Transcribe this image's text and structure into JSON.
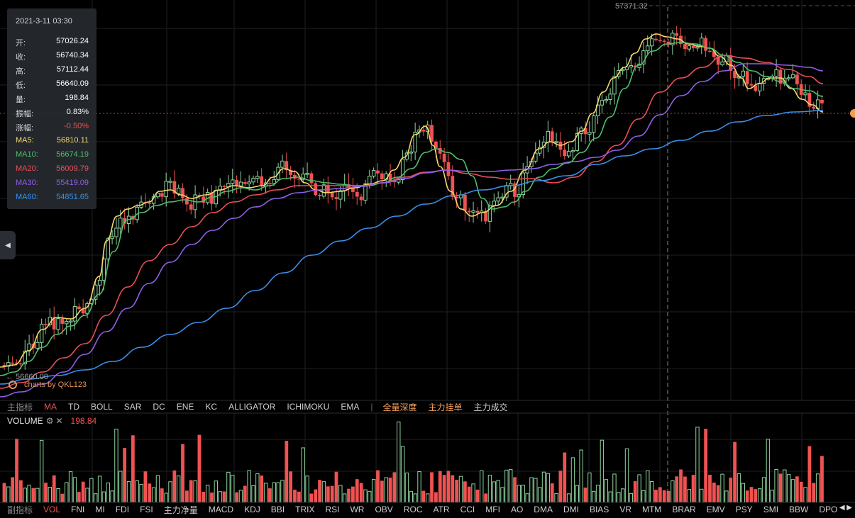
{
  "info": {
    "datetime": "2021-3-11 03:30",
    "rows": [
      {
        "label": "开:",
        "value": "57026.24",
        "color": "#ffffff"
      },
      {
        "label": "收:",
        "value": "56740.34",
        "color": "#ffffff"
      },
      {
        "label": "高:",
        "value": "57112.44",
        "color": "#ffffff"
      },
      {
        "label": "低:",
        "value": "56640.09",
        "color": "#ffffff"
      },
      {
        "label": "量:",
        "value": "198.84",
        "color": "#ffffff"
      },
      {
        "label": "振幅:",
        "value": "0.83%",
        "color": "#ffffff"
      },
      {
        "label": "涨幅:",
        "value": "-0.50%",
        "color": "#f05252"
      },
      {
        "label": "MA5:",
        "value": "56810.11",
        "color": "#f5d76e"
      },
      {
        "label": "MA10:",
        "value": "56674.19",
        "color": "#4fbf6b"
      },
      {
        "label": "MA20:",
        "value": "56009.79",
        "color": "#e8505b"
      },
      {
        "label": "MA30:",
        "value": "55419.09",
        "color": "#8f5fe8"
      },
      {
        "label": "MA60:",
        "value": "54851.65",
        "color": "#3b8fe8"
      }
    ]
  },
  "price_max_label": "57371.32",
  "price_min_label": "← 56660.00",
  "brand": "charts by QKL123",
  "main_indicators": {
    "title": "主指标",
    "items": [
      "MA",
      "TD",
      "BOLL",
      "SAR",
      "DC",
      "ENE",
      "KC",
      "ALLIGATOR",
      "ICHIMOKU",
      "EMA"
    ],
    "active": "MA",
    "separator": "|",
    "extra": [
      "全量深度",
      "主力挂单",
      "主力成交"
    ]
  },
  "volume_header": {
    "title": "VOLUME",
    "settings_icon": "gear-icon",
    "close_icon": "close-icon",
    "value": "198.84"
  },
  "sub_indicators": {
    "title": "副指标",
    "items": [
      "VOL",
      "FNI",
      "MI",
      "FDI",
      "FSI",
      "主力净量",
      "MACD",
      "KDJ",
      "BBI",
      "TRIX",
      "RSI",
      "WR",
      "OBV",
      "ROC",
      "ATR",
      "CCI",
      "MFI",
      "AO",
      "DMA",
      "DMI",
      "BIAS",
      "VR",
      "MTM",
      "BRAR",
      "EMV",
      "PSY",
      "SMI",
      "BBW",
      "DPO"
    ],
    "active": "VOL"
  },
  "colors": {
    "up": "#f05252",
    "down": "#8fd6a0",
    "ma5": "#f5d76e",
    "ma10": "#4fbf6b",
    "ma20": "#e8505b",
    "ma30": "#8f5fe8",
    "ma60": "#3b8fe8",
    "grid": "#1e2024"
  },
  "chart_data": {
    "type": "candlestick",
    "series": [
      {
        "name": "MA5",
        "points": [
          [
            0,
            518
          ],
          [
            20,
            515
          ],
          [
            40,
            495
          ],
          [
            60,
            465
          ],
          [
            80,
            448
          ],
          [
            100,
            450
          ],
          [
            120,
            435
          ],
          [
            140,
            390
          ],
          [
            150,
            340
          ],
          [
            165,
            305
          ],
          [
            180,
            295
          ],
          [
            195,
            290
          ],
          [
            210,
            285
          ],
          [
            225,
            270
          ],
          [
            240,
            268
          ],
          [
            255,
            275
          ],
          [
            270,
            280
          ],
          [
            290,
            275
          ],
          [
            310,
            268
          ],
          [
            330,
            262
          ],
          [
            350,
            265
          ],
          [
            370,
            262
          ],
          [
            385,
            250
          ],
          [
            400,
            238
          ],
          [
            415,
            242
          ],
          [
            430,
            258
          ],
          [
            445,
            268
          ],
          [
            460,
            272
          ],
          [
            480,
            270
          ],
          [
            500,
            265
          ],
          [
            520,
            260
          ],
          [
            540,
            255
          ],
          [
            555,
            240
          ],
          [
            570,
            222
          ],
          [
            585,
            190
          ],
          [
            600,
            178
          ],
          [
            610,
            205
          ],
          [
            620,
            235
          ],
          [
            635,
            270
          ],
          [
            650,
            295
          ],
          [
            665,
            305
          ],
          [
            680,
            300
          ],
          [
            700,
            290
          ],
          [
            720,
            270
          ],
          [
            740,
            240
          ],
          [
            760,
            210
          ],
          [
            775,
            200
          ],
          [
            790,
            205
          ],
          [
            805,
            200
          ],
          [
            820,
            185
          ],
          [
            835,
            160
          ],
          [
            850,
            130
          ],
          [
            865,
            110
          ],
          [
            880,
            95
          ],
          [
            895,
            75
          ],
          [
            910,
            55
          ],
          [
            925,
            48
          ],
          [
            940,
            52
          ],
          [
            955,
            55
          ],
          [
            970,
            62
          ],
          [
            985,
            65
          ],
          [
            1000,
            68
          ],
          [
            1015,
            80
          ],
          [
            1030,
            92
          ],
          [
            1045,
            110
          ],
          [
            1055,
            125
          ],
          [
            1070,
            118
          ],
          [
            1085,
            110
          ],
          [
            1100,
            110
          ],
          [
            1115,
            125
          ],
          [
            1130,
            140
          ],
          [
            1145,
            148
          ],
          [
            1160,
            158
          ]
        ]
      },
      {
        "name": "MA10",
        "points": [
          [
            0,
            530
          ],
          [
            20,
            525
          ],
          [
            40,
            510
          ],
          [
            60,
            490
          ],
          [
            80,
            472
          ],
          [
            100,
            460
          ],
          [
            120,
            445
          ],
          [
            140,
            415
          ],
          [
            160,
            355
          ],
          [
            180,
            310
          ],
          [
            200,
            300
          ],
          [
            220,
            290
          ],
          [
            240,
            285
          ],
          [
            260,
            282
          ],
          [
            280,
            285
          ],
          [
            300,
            278
          ],
          [
            320,
            270
          ],
          [
            340,
            265
          ],
          [
            360,
            268
          ],
          [
            380,
            262
          ],
          [
            400,
            252
          ],
          [
            420,
            250
          ],
          [
            440,
            255
          ],
          [
            460,
            258
          ],
          [
            480,
            260
          ],
          [
            500,
            262
          ],
          [
            520,
            262
          ],
          [
            540,
            258
          ],
          [
            560,
            250
          ],
          [
            580,
            238
          ],
          [
            600,
            215
          ],
          [
            615,
            210
          ],
          [
            630,
            215
          ],
          [
            650,
            225
          ],
          [
            665,
            248
          ],
          [
            680,
            280
          ],
          [
            695,
            295
          ],
          [
            710,
            292
          ],
          [
            725,
            285
          ],
          [
            740,
            270
          ],
          [
            760,
            250
          ],
          [
            780,
            238
          ],
          [
            800,
            230
          ],
          [
            820,
            215
          ],
          [
            840,
            195
          ],
          [
            860,
            165
          ],
          [
            880,
            125
          ],
          [
            900,
            92
          ],
          [
            920,
            72
          ],
          [
            940,
            62
          ],
          [
            960,
            60
          ],
          [
            980,
            62
          ],
          [
            1000,
            68
          ],
          [
            1020,
            78
          ],
          [
            1040,
            88
          ],
          [
            1060,
            100
          ],
          [
            1080,
            108
          ],
          [
            1100,
            115
          ],
          [
            1120,
            125
          ],
          [
            1140,
            128
          ],
          [
            1160,
            136
          ]
        ]
      },
      {
        "name": "MA20",
        "points": [
          [
            0,
            548
          ],
          [
            30,
            540
          ],
          [
            60,
            525
          ],
          [
            90,
            505
          ],
          [
            120,
            485
          ],
          [
            150,
            445
          ],
          [
            180,
            405
          ],
          [
            210,
            368
          ],
          [
            240,
            345
          ],
          [
            270,
            320
          ],
          [
            300,
            300
          ],
          [
            330,
            285
          ],
          [
            360,
            275
          ],
          [
            390,
            268
          ],
          [
            420,
            262
          ],
          [
            450,
            262
          ],
          [
            480,
            262
          ],
          [
            510,
            262
          ],
          [
            540,
            258
          ],
          [
            570,
            250
          ],
          [
            600,
            243
          ],
          [
            630,
            240
          ],
          [
            660,
            245
          ],
          [
            690,
            250
          ],
          [
            720,
            253
          ],
          [
            750,
            252
          ],
          [
            780,
            258
          ],
          [
            810,
            250
          ],
          [
            840,
            228
          ],
          [
            870,
            205
          ],
          [
            900,
            168
          ],
          [
            930,
            130
          ],
          [
            960,
            110
          ],
          [
            990,
            95
          ],
          [
            1020,
            78
          ],
          [
            1050,
            82
          ],
          [
            1080,
            88
          ],
          [
            1110,
            98
          ],
          [
            1140,
            108
          ],
          [
            1160,
            118
          ]
        ]
      },
      {
        "name": "MA30",
        "points": [
          [
            0,
            560
          ],
          [
            30,
            553
          ],
          [
            60,
            542
          ],
          [
            90,
            525
          ],
          [
            120,
            500
          ],
          [
            150,
            468
          ],
          [
            180,
            435
          ],
          [
            210,
            400
          ],
          [
            240,
            370
          ],
          [
            270,
            345
          ],
          [
            300,
            325
          ],
          [
            330,
            308
          ],
          [
            360,
            292
          ],
          [
            390,
            280
          ],
          [
            420,
            272
          ],
          [
            450,
            268
          ],
          [
            480,
            266
          ],
          [
            510,
            263
          ],
          [
            540,
            258
          ],
          [
            570,
            252
          ],
          [
            600,
            244
          ],
          [
            630,
            240
          ],
          [
            660,
            242
          ],
          [
            690,
            242
          ],
          [
            720,
            240
          ],
          [
            750,
            238
          ],
          [
            780,
            232
          ],
          [
            810,
            228
          ],
          [
            840,
            222
          ],
          [
            870,
            212
          ],
          [
            900,
            192
          ],
          [
            930,
            162
          ],
          [
            960,
            135
          ],
          [
            990,
            115
          ],
          [
            1020,
            100
          ],
          [
            1050,
            90
          ],
          [
            1080,
            90
          ],
          [
            1110,
            92
          ],
          [
            1140,
            95
          ],
          [
            1160,
            100
          ]
        ]
      },
      {
        "name": "MA60",
        "points": [
          [
            0,
            542
          ],
          [
            40,
            535
          ],
          [
            80,
            530
          ],
          [
            120,
            522
          ],
          [
            160,
            510
          ],
          [
            200,
            490
          ],
          [
            240,
            472
          ],
          [
            280,
            455
          ],
          [
            320,
            435
          ],
          [
            360,
            410
          ],
          [
            400,
            385
          ],
          [
            440,
            360
          ],
          [
            480,
            340
          ],
          [
            520,
            322
          ],
          [
            560,
            305
          ],
          [
            600,
            288
          ],
          [
            640,
            276
          ],
          [
            680,
            268
          ],
          [
            720,
            262
          ],
          [
            760,
            255
          ],
          [
            800,
            248
          ],
          [
            840,
            232
          ],
          [
            880,
            220
          ],
          [
            920,
            210
          ],
          [
            960,
            198
          ],
          [
            1000,
            185
          ],
          [
            1040,
            172
          ],
          [
            1080,
            163
          ],
          [
            1120,
            158
          ],
          [
            1160,
            156
          ]
        ]
      }
    ]
  }
}
